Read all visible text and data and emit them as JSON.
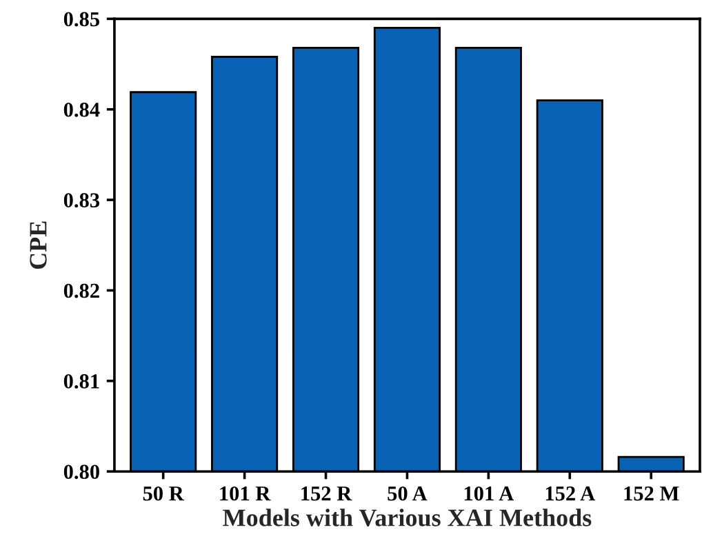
{
  "chart_data": {
    "type": "bar",
    "xlabel": "Models with Various XAI Methods",
    "ylabel": "CPE",
    "categories": [
      "50 R",
      "101 R",
      "152 R",
      "50 A",
      "101 A",
      "152 A",
      "152 M"
    ],
    "values": [
      0.8419,
      0.8458,
      0.8468,
      0.849,
      0.8468,
      0.841,
      0.8016
    ],
    "color": "#0a62b4",
    "ylim": [
      0.8,
      0.85
    ],
    "yticks": [
      {
        "value": 0.8,
        "label": "0.80"
      },
      {
        "value": 0.81,
        "label": "0.81"
      },
      {
        "value": 0.82,
        "label": "0.82"
      },
      {
        "value": 0.83,
        "label": "0.83"
      },
      {
        "value": 0.84,
        "label": "0.84"
      },
      {
        "value": 0.85,
        "label": "0.85"
      }
    ],
    "grid": false
  }
}
